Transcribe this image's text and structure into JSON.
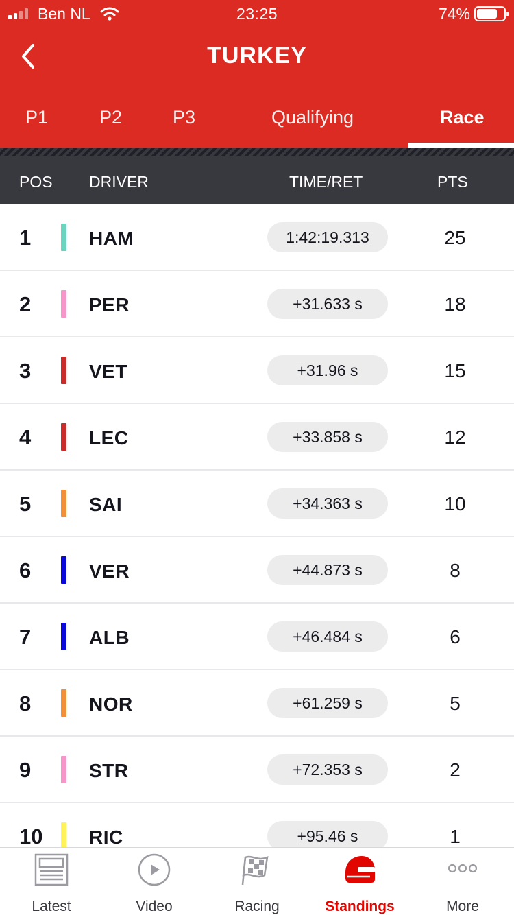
{
  "status_bar": {
    "carrier": "Ben NL",
    "time": "23:25",
    "battery": "74%"
  },
  "header": {
    "title": "TURKEY",
    "back_icon": "chevron-left-icon"
  },
  "tabs": [
    {
      "label": "P1",
      "active": false
    },
    {
      "label": "P2",
      "active": false
    },
    {
      "label": "P3",
      "active": false
    },
    {
      "label": "Qualifying",
      "active": false
    },
    {
      "label": "Race",
      "active": true
    }
  ],
  "columns": {
    "pos": "POS",
    "driver": "DRIVER",
    "time": "TIME/RET",
    "pts": "PTS"
  },
  "results": [
    {
      "pos": "1",
      "driver": "HAM",
      "time": "1:42:19.313",
      "pts": "25",
      "team_color": "#6cd3bf"
    },
    {
      "pos": "2",
      "driver": "PER",
      "time": "+31.633 s",
      "pts": "18",
      "team_color": "#f596c8"
    },
    {
      "pos": "3",
      "driver": "VET",
      "time": "+31.96 s",
      "pts": "15",
      "team_color": "#c92d2b"
    },
    {
      "pos": "4",
      "driver": "LEC",
      "time": "+33.858 s",
      "pts": "12",
      "team_color": "#c92d2b"
    },
    {
      "pos": "5",
      "driver": "SAI",
      "time": "+34.363 s",
      "pts": "10",
      "team_color": "#f0903a"
    },
    {
      "pos": "6",
      "driver": "VER",
      "time": "+44.873 s",
      "pts": "8",
      "team_color": "#0a0ad8"
    },
    {
      "pos": "7",
      "driver": "ALB",
      "time": "+46.484 s",
      "pts": "6",
      "team_color": "#0a0ad8"
    },
    {
      "pos": "8",
      "driver": "NOR",
      "time": "+61.259 s",
      "pts": "5",
      "team_color": "#f0903a"
    },
    {
      "pos": "9",
      "driver": "STR",
      "time": "+72.353 s",
      "pts": "2",
      "team_color": "#f596c8"
    },
    {
      "pos": "10",
      "driver": "RIC",
      "time": "+95.46 s",
      "pts": "1",
      "team_color": "#fff25a"
    }
  ],
  "bottom_nav": [
    {
      "label": "Latest",
      "icon": "newspaper-icon",
      "active": false
    },
    {
      "label": "Video",
      "icon": "play-circle-icon",
      "active": false
    },
    {
      "label": "Racing",
      "icon": "checkered-flag-icon",
      "active": false
    },
    {
      "label": "Standings",
      "icon": "helmet-icon",
      "active": true
    },
    {
      "label": "More",
      "icon": "more-dots-icon",
      "active": false
    }
  ],
  "colors": {
    "brand_red": "#dc2b22",
    "header_dark": "#38383f",
    "active_nav": "#e10600"
  }
}
